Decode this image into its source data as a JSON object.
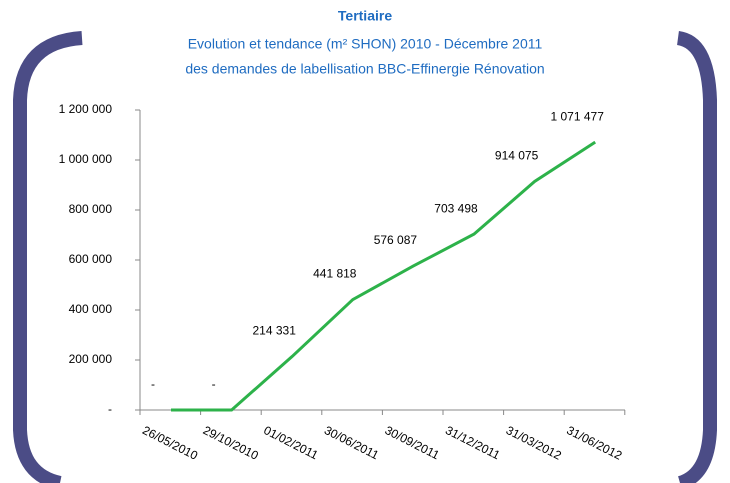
{
  "chart_data": {
    "type": "line",
    "title": "Tertiaire",
    "subtitle": [
      "Evolution et tendance (m² SHON) 2010 - Décembre 2011",
      "des demandes de labellisation BBC-Effinergie Rénovation"
    ],
    "categories": [
      "26/05/2010",
      "29/10/2010",
      "01/02/2011",
      "30/06/2011",
      "30/09/2011",
      "31/12/2011",
      "31/03/2012",
      "31/06/2012"
    ],
    "series": [
      {
        "color": "#2db24a",
        "values": [
          0,
          0,
          214331,
          441818,
          576087,
          703498,
          914075,
          1071477
        ],
        "value_labels": [
          "-",
          "-",
          "214 331",
          "441 818",
          "576 087",
          "703 498",
          "914 075",
          "1 071 477"
        ]
      }
    ],
    "ylim": [
      0,
      1200000
    ],
    "yticks": [
      {
        "value": 0,
        "label": "-"
      },
      {
        "value": 200000,
        "label": "200 000"
      },
      {
        "value": 400000,
        "label": "400 000"
      },
      {
        "value": 600000,
        "label": "600 000"
      },
      {
        "value": 800000,
        "label": "800 000"
      },
      {
        "value": 1000000,
        "label": "1 000 000"
      },
      {
        "value": 1200000,
        "label": "1 200 000"
      }
    ]
  }
}
